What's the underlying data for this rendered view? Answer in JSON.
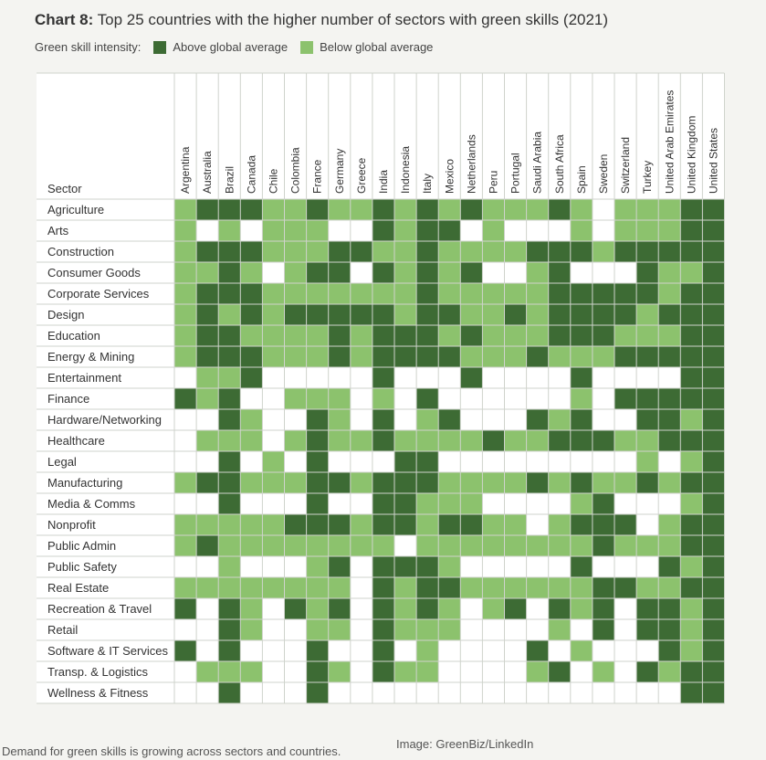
{
  "colors": {
    "above": "#3d6b34",
    "below": "#8cc26d",
    "none": "#ffffff",
    "grid": "#cfd3cc",
    "text": "#333333"
  },
  "chart_data": {
    "type": "heatmap",
    "title_prefix": "Chart 8:",
    "title": "Top 25 countries with the higher number of sectors with green skills (2021)",
    "legend_title": "Green skill intensity:",
    "legend": [
      {
        "key": "A",
        "label": "Above global average"
      },
      {
        "key": "B",
        "label": "Below global average"
      }
    ],
    "row_header": "Sector",
    "columns": [
      "Argentina",
      "Australia",
      "Brazil",
      "Canada",
      "Chile",
      "Colombia",
      "France",
      "Germany",
      "Greece",
      "India",
      "Indonesia",
      "Italy",
      "Mexico",
      "Netherlands",
      "Peru",
      "Portugal",
      "Saudi Arabia",
      "South Africa",
      "Spain",
      "Sweden",
      "Switzerland",
      "Turkey",
      "United Arab Emirates",
      "United Kingdom",
      "United States"
    ],
    "rows": [
      {
        "sector": "Agriculture",
        "values": "BAAABBABBABABABBBABWBBBAA"
      },
      {
        "sector": "Arts",
        "values": "BWBWBBBWWABAAWBWWWBWBBBAA"
      },
      {
        "sector": "Construction",
        "values": "BAAABBBAABBABBBBAAABAAAAA"
      },
      {
        "sector": "Consumer Goods",
        "values": "BBABWBAAWABABAWWBAWWWABBA"
      },
      {
        "sector": "Corporate Services",
        "values": "BAAABBBBBBBABBBBBAAAAABAA"
      },
      {
        "sector": "Design",
        "values": "BABABAAAAABAABBABAAAABAAA"
      },
      {
        "sector": "Education",
        "values": "BAABBBBABAAABABBBAAABBBAA"
      },
      {
        "sector": "Energy & Mining",
        "values": "BAAABBBABAAAABBBABBBAAAAA"
      },
      {
        "sector": "Entertainment",
        "values": "WBBAWWWWWAWWWAWWWWAWWWWAA"
      },
      {
        "sector": "Finance",
        "values": "ABAWWBBBWBWAWWWWWWBWAAAAA"
      },
      {
        "sector": "Hardware/Networking",
        "values": "WWABWWABWAWBAWWWABAWWAABA"
      },
      {
        "sector": "Healthcare",
        "values": "WBBBWBABBABBBBABBAAABBAAA"
      },
      {
        "sector": "Legal",
        "values": "WWAWBWAWWWAAWWWWWWWWWBWBA"
      },
      {
        "sector": "Manufacturing",
        "values": "BAABBBAABAAABBBBABABBABAA"
      },
      {
        "sector": "Media & Comms",
        "values": "WWAWWWAWWAABBBWWWWBAWWWBA"
      },
      {
        "sector": "Nonprofit",
        "values": "BBBBBAAABAABAABBWBAAAWBAA"
      },
      {
        "sector": "Public Admin",
        "values": "BABBBBBBBBWBBBBBBBBABBBAA"
      },
      {
        "sector": "Public Safety",
        "values": "WWBWWWBAWAAABWWWWWAWWWABA"
      },
      {
        "sector": "Real Estate",
        "values": "BBBBBBBBWABAABBBBBBAABBAA"
      },
      {
        "sector": "Recreation & Travel",
        "values": "AWABWABAWABABWBAWABAWAABA"
      },
      {
        "sector": "Retail",
        "values": "WWABWWBBWABBBWWWWBWAWAABA"
      },
      {
        "sector": "Software & IT Services",
        "values": "AWAWWWAWWAWBWWWWAWBWWWABA"
      },
      {
        "sector": "Transp. & Logistics",
        "values": "WBBBWWABWABBWWWWBAWBWABAA"
      },
      {
        "sector": "Wellness & Fitness",
        "values": "WWAWWWAWWWWWWWWWWWWWWWWAA"
      }
    ]
  },
  "caption": "Demand for green skills is growing across sectors and countries.",
  "credit": "Image: GreenBiz/LinkedIn"
}
